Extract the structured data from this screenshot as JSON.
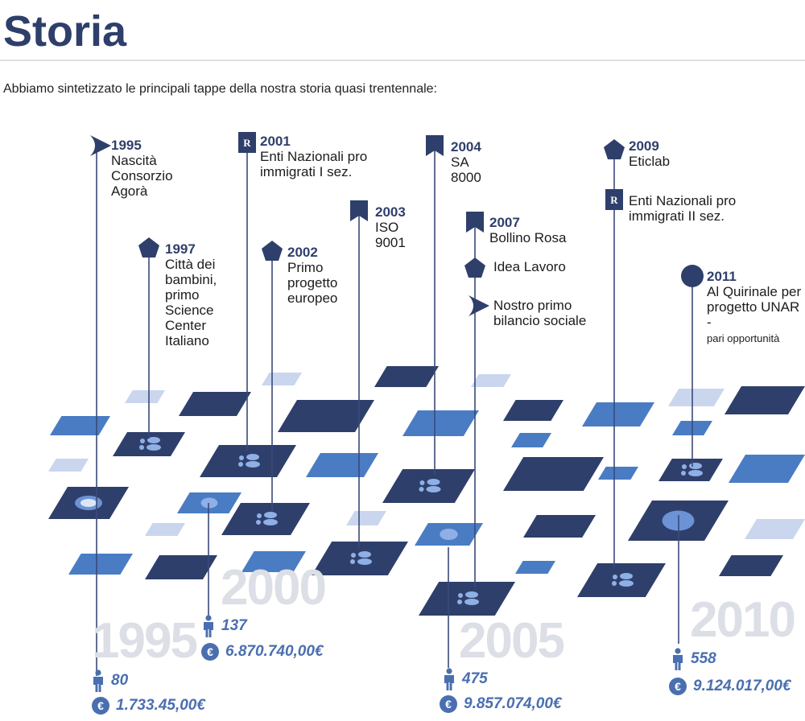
{
  "header": {
    "title": "Storia",
    "intro": "Abbiamo sintetizzato le principali tappe della nostra storia quasi trentennale:"
  },
  "milestones": [
    {
      "year": "1995",
      "text": "Nascità Consorzio Agorà",
      "icon": "chevron-flag-icon"
    },
    {
      "year": "1997",
      "text": "Città dei bambini, primo Science Center Italiano",
      "icon": "pentagon-icon"
    },
    {
      "year": "2001",
      "text": "Enti Nazionali pro immigrati I sez.",
      "icon": "registry-r-icon"
    },
    {
      "year": "2002",
      "text": "Primo progetto europeo",
      "icon": "pentagon-icon"
    },
    {
      "year": "2003",
      "text": "ISO 9001",
      "icon": "flag-icon"
    },
    {
      "year": "2004",
      "text": "SA 8000",
      "icon": "flag-icon"
    },
    {
      "year": "2007",
      "text": "Bollino Rosa",
      "icon": "flag-icon"
    },
    {
      "year": "",
      "text": "Idea Lavoro",
      "icon": "pentagon-icon"
    },
    {
      "year": "",
      "text": "Nostro primo bilancio sociale",
      "icon": "chevron-flag-icon"
    },
    {
      "year": "2009",
      "text": "Eticlab",
      "icon": "pentagon-icon"
    },
    {
      "year": "",
      "text": "Enti Nazionali pro immigrati II sez.",
      "icon": "registry-r-icon"
    },
    {
      "year": "2011",
      "text": "Al Quirinale per progetto UNAR -",
      "text2": "pari opportunità",
      "icon": "circle-icon"
    }
  ],
  "periods": [
    {
      "year": "1995",
      "employees": "80",
      "revenue": "1.733.45,00€"
    },
    {
      "year": "2000",
      "employees": "137",
      "revenue": "6.870.740,00€"
    },
    {
      "year": "2005",
      "employees": "475",
      "revenue": "9.857.074,00€"
    },
    {
      "year": "2010",
      "employees": "558",
      "revenue": "9.124.017,00€"
    }
  ],
  "colors": {
    "dark": "#2f3f6b",
    "medium": "#4a7cc4",
    "light": "#c9d6ee",
    "stat": "#4a6fb0"
  },
  "euro_symbol": "€"
}
